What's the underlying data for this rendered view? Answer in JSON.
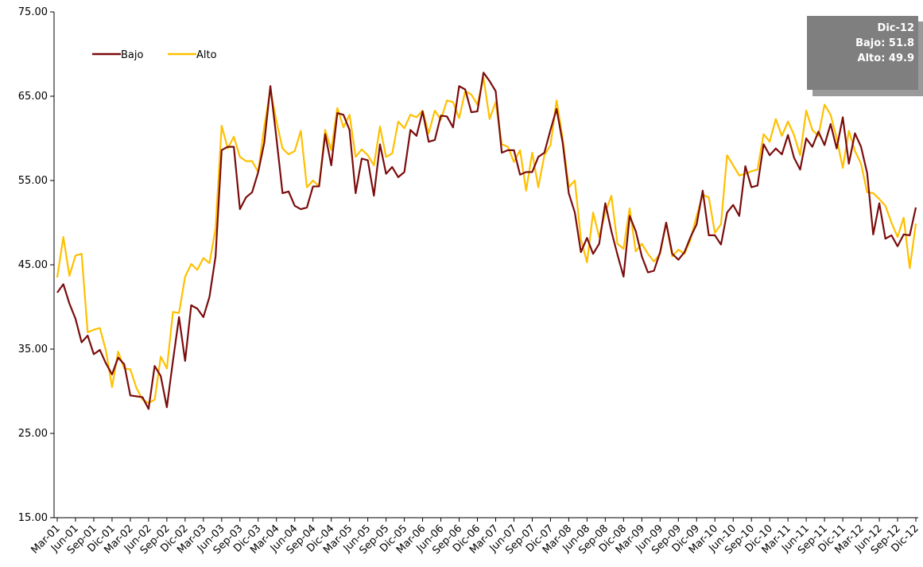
{
  "chart_data": {
    "type": "line",
    "categories": [
      "Mar-01",
      null,
      null,
      "Jun-01",
      null,
      null,
      "Sep-01",
      null,
      null,
      "Dic-01",
      null,
      null,
      "Mar-02",
      null,
      null,
      "Jun-02",
      null,
      null,
      "Sep-02",
      null,
      null,
      "Dic-02",
      null,
      null,
      "Mar-03",
      null,
      null,
      "Jun-03",
      null,
      null,
      "Sep-03",
      null,
      null,
      "Dic-03",
      null,
      null,
      "Mar-04",
      null,
      null,
      "Jun-04",
      null,
      null,
      "Sep-04",
      null,
      null,
      "Dic-04",
      null,
      null,
      "Mar-05",
      null,
      null,
      "Jun-05",
      null,
      null,
      "Sep-05",
      null,
      null,
      "Dic-05",
      null,
      null,
      "Mar-06",
      null,
      null,
      "Jun-06",
      null,
      null,
      "Sep-06",
      null,
      null,
      "Dic-06",
      null,
      null,
      "Mar-07",
      null,
      null,
      "Jun-07",
      null,
      null,
      "Sep-07",
      null,
      null,
      "Dic-07",
      null,
      null,
      "Mar-08",
      null,
      null,
      "Jun-08",
      null,
      null,
      "Sep-08",
      null,
      null,
      "Dic-08",
      null,
      null,
      "Mar-09",
      null,
      null,
      "Jun-09",
      null,
      null,
      "Sep-09",
      null,
      null,
      "Dic-09",
      null,
      null,
      "Mar-10",
      null,
      null,
      "Jun-10",
      null,
      null,
      "Sep-10",
      null,
      null,
      "Dic-10",
      null,
      null,
      "Mar-11",
      null,
      null,
      "Jun-11",
      null,
      null,
      "Sep-11",
      null,
      null,
      "Dic-11",
      null,
      null,
      "Mar-12",
      null,
      null,
      "Jun-12",
      null,
      null,
      "Sep-12",
      null,
      null,
      "Dic-12"
    ],
    "series": [
      {
        "name": "Bajo",
        "color": "#7b0c0c",
        "values": [
          41.7,
          42.7,
          40.4,
          38.6,
          35.8,
          36.6,
          34.4,
          34.9,
          33.3,
          32.0,
          34.0,
          33.2,
          29.5,
          29.4,
          29.3,
          27.9,
          33.0,
          31.8,
          28.1,
          33.6,
          38.8,
          33.6,
          40.2,
          39.8,
          38.8,
          41.2,
          46.0,
          58.6,
          59.0,
          59.0,
          51.6,
          53.0,
          53.6,
          56.0,
          59.5,
          66.2,
          60.0,
          53.5,
          53.7,
          52.0,
          51.6,
          51.8,
          54.3,
          54.3,
          60.5,
          56.8,
          63.0,
          62.8,
          61.0,
          53.5,
          57.6,
          57.4,
          53.2,
          59.3,
          55.8,
          56.6,
          55.4,
          56.0,
          61.0,
          60.3,
          63.2,
          59.6,
          59.8,
          62.7,
          62.6,
          61.3,
          66.2,
          65.8,
          63.1,
          63.2,
          67.8,
          66.8,
          65.6,
          58.3,
          58.6,
          58.6,
          55.7,
          56.0,
          56.0,
          57.8,
          58.3,
          61.0,
          63.5,
          59.5,
          53.5,
          51.2,
          46.5,
          48.2,
          46.3,
          47.5,
          52.3,
          49.0,
          46.2,
          43.6,
          50.8,
          49.0,
          46.0,
          44.1,
          44.3,
          46.5,
          50.0,
          46.3,
          45.6,
          46.5,
          48.3,
          49.8,
          53.8,
          48.5,
          48.5,
          47.4,
          51.2,
          52.1,
          50.8,
          56.7,
          54.2,
          54.4,
          59.3,
          58.0,
          58.8,
          58.1,
          60.4,
          57.7,
          56.3,
          60.0,
          59.0,
          60.8,
          59.2,
          61.7,
          58.8,
          62.5,
          57.0,
          60.6,
          59.0,
          55.9,
          48.6,
          52.3,
          48.1,
          48.5,
          47.2,
          48.6,
          48.5,
          51.8
        ]
      },
      {
        "name": "Alto",
        "color": "#ffc000",
        "values": [
          43.5,
          48.3,
          43.7,
          46.1,
          46.3,
          37.0,
          37.3,
          37.5,
          34.8,
          30.5,
          34.7,
          32.7,
          32.6,
          30.4,
          29.0,
          28.6,
          29.0,
          34.1,
          32.7,
          39.4,
          39.3,
          43.6,
          45.1,
          44.4,
          45.8,
          45.2,
          49.3,
          61.5,
          58.8,
          60.2,
          57.8,
          57.3,
          57.3,
          56.0,
          61.4,
          65.8,
          62.0,
          58.8,
          58.1,
          58.5,
          60.9,
          54.2,
          55.0,
          54.3,
          61.0,
          58.6,
          63.6,
          61.3,
          62.8,
          57.8,
          58.7,
          58.0,
          56.8,
          61.4,
          57.8,
          58.2,
          62.0,
          61.2,
          62.8,
          62.5,
          63.3,
          60.6,
          63.3,
          62.2,
          64.5,
          64.3,
          62.4,
          65.6,
          65.2,
          64.0,
          67.2,
          62.3,
          64.3,
          59.3,
          59.0,
          57.2,
          58.6,
          53.8,
          58.3,
          54.2,
          58.0,
          59.2,
          64.5,
          60.0,
          54.2,
          55.0,
          48.0,
          45.3,
          51.2,
          48.3,
          51.2,
          53.2,
          47.5,
          46.9,
          51.7,
          46.6,
          47.5,
          46.3,
          45.4,
          46.3,
          50.0,
          46.0,
          46.8,
          46.3,
          48.0,
          50.8,
          53.3,
          53.0,
          48.8,
          49.8,
          58.0,
          56.8,
          55.6,
          55.8,
          56.1,
          56.3,
          60.5,
          59.6,
          62.3,
          60.3,
          62.0,
          60.4,
          58.0,
          63.3,
          61.0,
          60.3,
          64.0,
          62.8,
          60.0,
          56.5,
          60.9,
          58.5,
          57.0,
          53.6,
          53.5,
          52.8,
          52.0,
          50.0,
          48.3,
          50.6,
          44.6,
          49.9
        ]
      }
    ],
    "ylim": [
      15,
      75
    ],
    "yticks": [
      {
        "value": 15,
        "label": "15.00"
      },
      {
        "value": 25,
        "label": "25.00"
      },
      {
        "value": 35,
        "label": "35.00"
      },
      {
        "value": 45,
        "label": "45.00"
      },
      {
        "value": 55,
        "label": "55.00"
      },
      {
        "value": 65,
        "label": "65.00"
      },
      {
        "value": 75,
        "label": "75.00"
      }
    ],
    "grid": false,
    "legend": "top-left",
    "annotation": {
      "title": "Dic-12",
      "lines": [
        "Bajo: 51.8",
        "Alto: 49.9"
      ]
    }
  }
}
